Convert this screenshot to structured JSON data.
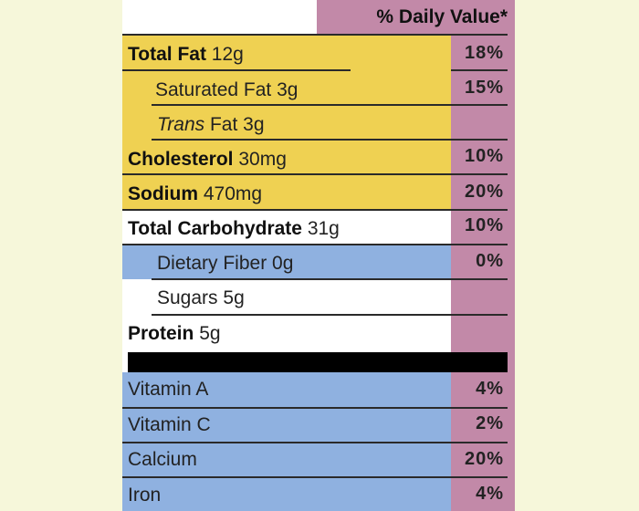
{
  "colors": {
    "page_background": "#f6f7da",
    "fat_group": "#efd152",
    "daily_value_column": "#c289a8",
    "carb_blue": "#8fb1e0",
    "white": "#ffffff",
    "divider": "#2a2a2a"
  },
  "header": {
    "daily_value_label": "% Daily Value*"
  },
  "nutrients": [
    {
      "name": "Total Fat",
      "amount": "12g",
      "daily_value": "18%"
    },
    {
      "name": "Saturated Fat",
      "amount": "3g",
      "daily_value": "15%"
    },
    {
      "name_prefix": "Trans",
      "name": "Fat",
      "amount": "3g",
      "daily_value": ""
    },
    {
      "name": "Cholesterol",
      "amount": "30mg",
      "daily_value": "10%"
    },
    {
      "name": "Sodium",
      "amount": "470mg",
      "daily_value": "20%"
    },
    {
      "name": "Total Carbohydrate",
      "amount": "31g",
      "daily_value": "10%"
    },
    {
      "name": "Dietary Fiber",
      "amount": "0g",
      "daily_value": "0%"
    },
    {
      "name": "Sugars",
      "amount": "5g",
      "daily_value": ""
    },
    {
      "name": "Protein",
      "amount": "5g",
      "daily_value": ""
    }
  ],
  "vitamins": [
    {
      "name": "Vitamin A",
      "daily_value": "4%"
    },
    {
      "name": "Vitamin C",
      "daily_value": "2%"
    },
    {
      "name": "Calcium",
      "daily_value": "20%"
    },
    {
      "name": "Iron",
      "daily_value": "4%"
    }
  ]
}
